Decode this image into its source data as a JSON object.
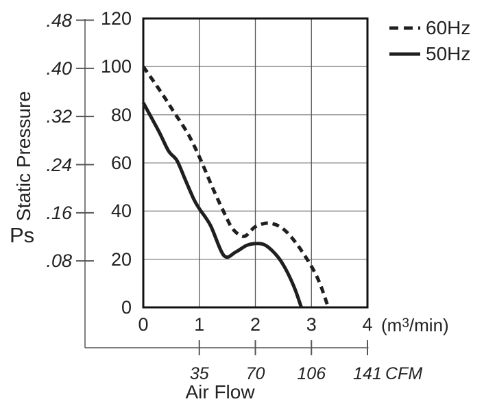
{
  "chart_data": {
    "type": "line",
    "xlabel": "Air Flow",
    "x_axis": {
      "unit_prefix": "(m",
      "unit_sup": "3",
      "unit_suffix": "/min)",
      "ticks": [
        "0",
        "1",
        "2",
        "3",
        "4"
      ],
      "min": 0,
      "max": 4
    },
    "y_axis_pa": {
      "ticks": [
        "120",
        "100",
        "80",
        "60",
        "40",
        "20",
        "0"
      ],
      "min": 0,
      "max": 120
    },
    "y_axis_inches": {
      "title": "Static Pressure",
      "symbol": "Ps",
      "ticks": [
        ".48",
        ".40",
        ".32",
        ".24",
        ".16",
        ".08"
      ]
    },
    "cfm_axis": {
      "labels": [
        "35",
        "70",
        "106",
        "141"
      ],
      "at_x": [
        1,
        2,
        3,
        4
      ],
      "unit": "CFM"
    },
    "legend": [
      {
        "label": "60Hz",
        "style": "dashed"
      },
      {
        "label": "50Hz",
        "style": "solid"
      }
    ],
    "series": [
      {
        "name": "60Hz",
        "style": "dashed",
        "points": [
          [
            0,
            100
          ],
          [
            0.3,
            90
          ],
          [
            0.55,
            81
          ],
          [
            0.8,
            72
          ],
          [
            1,
            62.5
          ],
          [
            1.25,
            49
          ],
          [
            1.45,
            39
          ],
          [
            1.6,
            32.5
          ],
          [
            1.8,
            29.5
          ],
          [
            2,
            33.5
          ],
          [
            2.25,
            35
          ],
          [
            2.5,
            32.5
          ],
          [
            2.75,
            26
          ],
          [
            3,
            17
          ],
          [
            3.15,
            10
          ],
          [
            3.3,
            0
          ]
        ]
      },
      {
        "name": "50Hz",
        "style": "solid",
        "points": [
          [
            0,
            85
          ],
          [
            0.28,
            73
          ],
          [
            0.45,
            65
          ],
          [
            0.6,
            61
          ],
          [
            0.75,
            53
          ],
          [
            0.9,
            45
          ],
          [
            1,
            41
          ],
          [
            1.2,
            34
          ],
          [
            1.44,
            21.5
          ],
          [
            1.65,
            23
          ],
          [
            1.85,
            25.8
          ],
          [
            2.05,
            26.5
          ],
          [
            2.2,
            25.5
          ],
          [
            2.4,
            21
          ],
          [
            2.55,
            15.5
          ],
          [
            2.7,
            8
          ],
          [
            2.82,
            0
          ]
        ]
      }
    ],
    "grid": true,
    "colors": {
      "curve": "#1f1f1f",
      "grid_h": "#8a8a8a",
      "grid_v": "#555555",
      "border": "#111111",
      "scale_line": "#555555",
      "text": "#222222"
    }
  }
}
